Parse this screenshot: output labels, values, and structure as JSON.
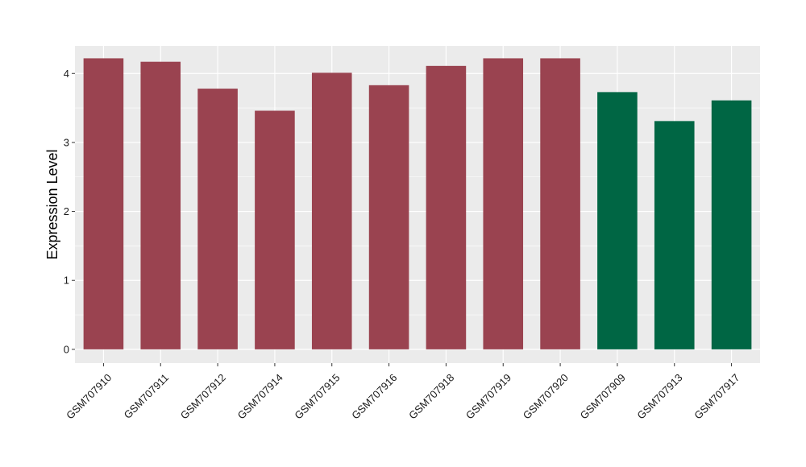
{
  "chart_data": {
    "type": "bar",
    "title": "",
    "xlabel": "",
    "ylabel": "Expression Level",
    "ylim": [
      -0.2,
      4.4
    ],
    "yticks": [
      0,
      1,
      2,
      3,
      4
    ],
    "grid": true,
    "legend": "none",
    "categories": [
      "GSM707910",
      "GSM707911",
      "GSM707912",
      "GSM707914",
      "GSM707915",
      "GSM707916",
      "GSM707918",
      "GSM707919",
      "GSM707920",
      "GSM707909",
      "GSM707913",
      "GSM707917"
    ],
    "values": [
      4.22,
      4.17,
      3.78,
      3.46,
      4.01,
      3.83,
      4.11,
      4.22,
      4.22,
      3.73,
      3.31,
      3.61
    ],
    "bar_colors": [
      "#9A4350",
      "#9A4350",
      "#9A4350",
      "#9A4350",
      "#9A4350",
      "#9A4350",
      "#9A4350",
      "#9A4350",
      "#9A4350",
      "#006644",
      "#006644",
      "#006644"
    ],
    "panel_background": "#EBEBEB",
    "grid_color": "#FFFFFF"
  }
}
